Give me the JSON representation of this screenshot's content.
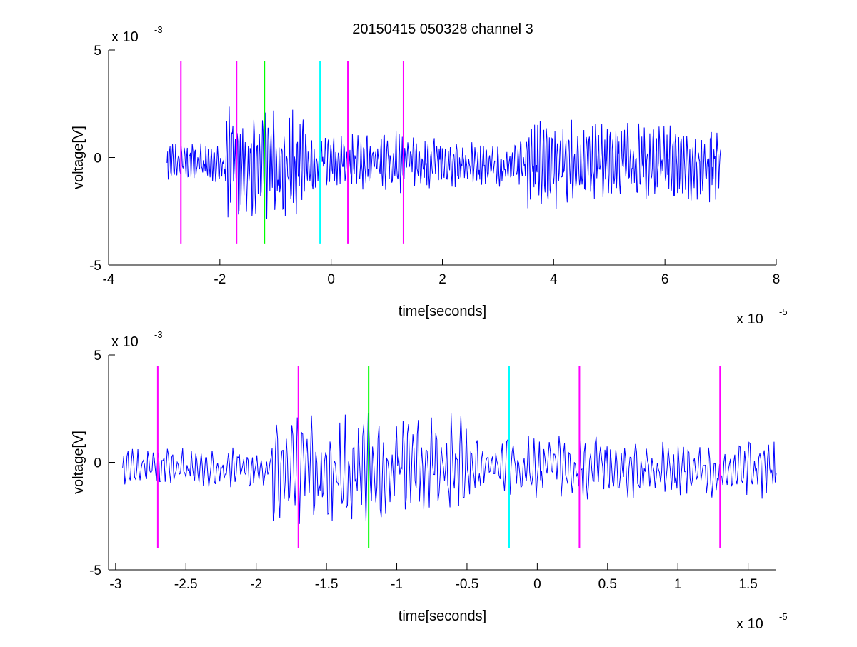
{
  "chart_data": [
    {
      "type": "line",
      "title": "20150415 050328 channel 3",
      "xlabel": "time[seconds]",
      "ylabel": "voltage[V]",
      "xlim": [
        -4,
        8
      ],
      "ylim": [
        -5,
        5
      ],
      "x_ticks": [
        -4,
        -2,
        0,
        2,
        4,
        6,
        8
      ],
      "y_ticks": [
        -5,
        0,
        5
      ],
      "x_multiplier": "x 10",
      "x_exponent": "-5",
      "y_multiplier": "x 10",
      "y_exponent": "-3",
      "signal": {
        "color": "#0000ff",
        "x_start": -2.95,
        "x_end": 7.0,
        "sample_count": 900,
        "envelope_segments": [
          {
            "from": -2.95,
            "to": -1.9,
            "amplitude": 1.0
          },
          {
            "from": -1.9,
            "to": -0.5,
            "amplitude": 2.8
          },
          {
            "from": -0.5,
            "to": 1.3,
            "amplitude": 1.5
          },
          {
            "from": 1.3,
            "to": 3.5,
            "amplitude": 1.2
          },
          {
            "from": 3.5,
            "to": 4.5,
            "amplitude": 2.2
          },
          {
            "from": 4.5,
            "to": 7.0,
            "amplitude": 1.9
          }
        ]
      },
      "markers": [
        {
          "x": -2.7,
          "color": "#ff00ff",
          "y_from": -4,
          "y_to": 4.5
        },
        {
          "x": -1.7,
          "color": "#ff00ff",
          "y_from": -4,
          "y_to": 4.5
        },
        {
          "x": -1.2,
          "color": "#00ff00",
          "y_from": -4,
          "y_to": 4.5
        },
        {
          "x": -0.2,
          "color": "#00ffff",
          "y_from": -4,
          "y_to": 4.5
        },
        {
          "x": 0.3,
          "color": "#ff00ff",
          "y_from": -4,
          "y_to": 4.5
        },
        {
          "x": 1.3,
          "color": "#ff00ff",
          "y_from": -4,
          "y_to": 4.5
        }
      ]
    },
    {
      "type": "line",
      "title": "",
      "xlabel": "time[seconds]",
      "ylabel": "voltage[V]",
      "xlim": [
        -3.05,
        1.7
      ],
      "ylim": [
        -5,
        5
      ],
      "x_ticks": [
        -3,
        -2.5,
        -2,
        -1.5,
        -1,
        -0.5,
        0,
        0.5,
        1,
        1.5
      ],
      "y_ticks": [
        -5,
        0,
        5
      ],
      "x_multiplier": "x 10",
      "x_exponent": "-5",
      "y_multiplier": "x 10",
      "y_exponent": "-3",
      "signal": {
        "color": "#0000ff",
        "x_start": -2.95,
        "x_end": 1.7,
        "sample_count": 600,
        "envelope_segments": [
          {
            "from": -2.95,
            "to": -1.9,
            "amplitude": 1.0
          },
          {
            "from": -1.9,
            "to": -0.5,
            "amplitude": 2.8
          },
          {
            "from": -0.5,
            "to": 1.7,
            "amplitude": 1.5
          }
        ]
      },
      "markers": [
        {
          "x": -2.7,
          "color": "#ff00ff",
          "y_from": -4,
          "y_to": 4.5
        },
        {
          "x": -1.7,
          "color": "#ff00ff",
          "y_from": -4,
          "y_to": 4.5
        },
        {
          "x": -1.2,
          "color": "#00ff00",
          "y_from": -4,
          "y_to": 4.5
        },
        {
          "x": -0.2,
          "color": "#00ffff",
          "y_from": -4,
          "y_to": 4.5
        },
        {
          "x": 0.3,
          "color": "#ff00ff",
          "y_from": -4,
          "y_to": 4.5
        },
        {
          "x": 1.3,
          "color": "#ff00ff",
          "y_from": -4,
          "y_to": 4.5
        }
      ]
    }
  ]
}
